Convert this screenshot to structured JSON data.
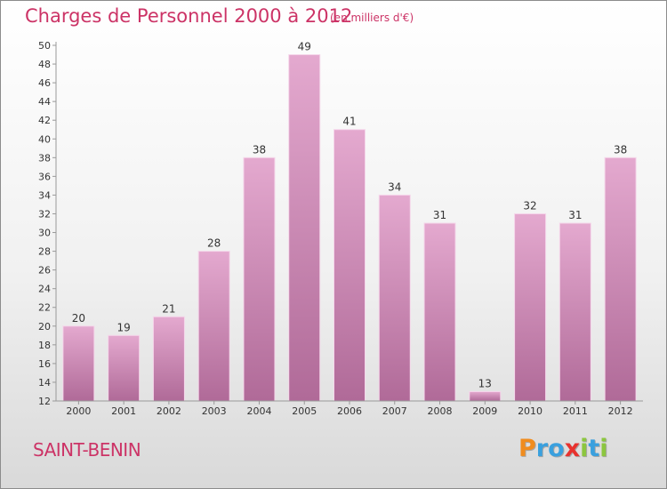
{
  "header": {
    "title": "Charges de Personnel 2000 à 2012",
    "subtitle": "(en milliers d'€)"
  },
  "footer": {
    "commune": "SAINT-BENIN",
    "brand": "Proxiti",
    "brand_letters": [
      {
        "char": "P",
        "color": "#f08c1e"
      },
      {
        "char": "r",
        "color": "#3aa0de"
      },
      {
        "char": "o",
        "color": "#3aa0de"
      },
      {
        "char": "x",
        "color": "#e8322e"
      },
      {
        "char": "i",
        "color": "#8cc63f"
      },
      {
        "char": "t",
        "color": "#3aa0de"
      },
      {
        "char": "i",
        "color": "#8cc63f"
      }
    ]
  },
  "colors": {
    "bar_top": "#e4a9cf",
    "bar_bottom": "#b06a98",
    "bar_edge": "#f5d6ea",
    "accent": "#cc3366"
  },
  "chart_data": {
    "type": "bar",
    "title": "Charges de Personnel 2000 à 2012",
    "subtitle": "(en milliers d'€)",
    "categories": [
      "2000",
      "2001",
      "2002",
      "2003",
      "2004",
      "2005",
      "2006",
      "2007",
      "2008",
      "2009",
      "2010",
      "2011",
      "2012"
    ],
    "values": [
      20,
      19,
      21,
      28,
      38,
      49,
      41,
      34,
      31,
      13,
      32,
      31,
      38
    ],
    "xlabel": "",
    "ylabel": "",
    "ylim": [
      12,
      50
    ],
    "yticks": [
      12,
      14,
      16,
      18,
      20,
      22,
      24,
      26,
      28,
      30,
      32,
      34,
      36,
      38,
      40,
      42,
      44,
      46,
      48,
      50
    ],
    "grid": false,
    "legend": "none"
  }
}
